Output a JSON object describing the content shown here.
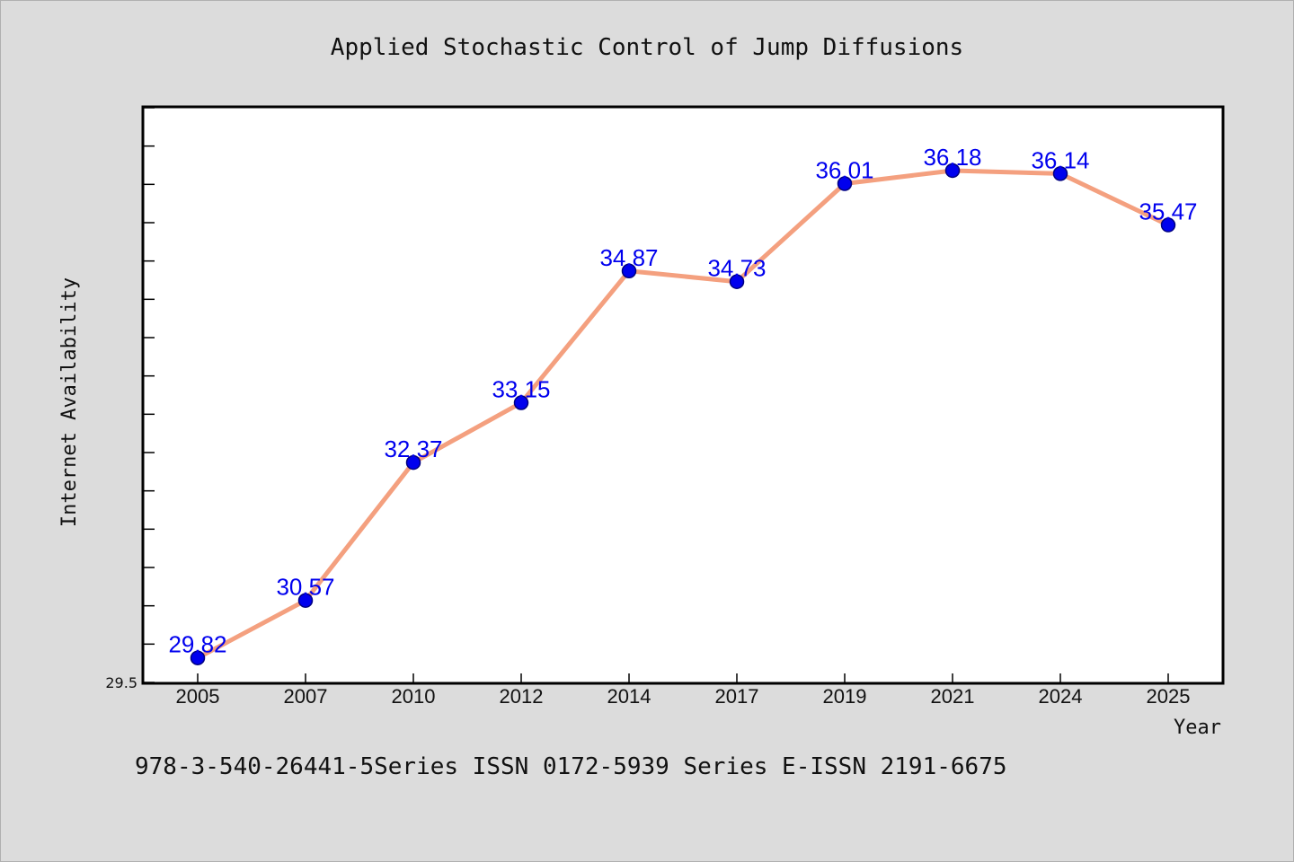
{
  "chart_data": {
    "type": "line",
    "title": "Applied Stochastic Control of Jump Diffusions",
    "xlabel": "Year",
    "ylabel": "Internet Availability",
    "categories": [
      "2005",
      "2007",
      "2010",
      "2012",
      "2014",
      "2017",
      "2019",
      "2021",
      "2024",
      "2025"
    ],
    "series": [
      {
        "values": [
          29.82,
          30.57,
          32.37,
          33.15,
          34.87,
          34.73,
          36.01,
          36.18,
          36.14,
          35.47
        ]
      }
    ],
    "data_labels": [
      "29.82",
      "30.57",
      "32.37",
      "33.15",
      "34.87",
      "34.73",
      "36.01",
      "36.18",
      "36.14",
      "35.47"
    ],
    "y_tick_labels": [
      "29.5"
    ],
    "ylim": [
      29.5,
      37.0
    ],
    "y_minor_tick_step": 0.5,
    "grid": false,
    "legend": "none",
    "colors": {
      "line": "#f4a07f",
      "marker_fill": "#0000ee",
      "marker_edge": "#000080",
      "data_label": "#0000ee",
      "plot_background": "#ffffff",
      "page_background": "#dcdcdc"
    }
  },
  "footer": {
    "caption": "978-3-540-26441-5Series ISSN 0172-5939 Series E-ISSN 2191-6675"
  }
}
